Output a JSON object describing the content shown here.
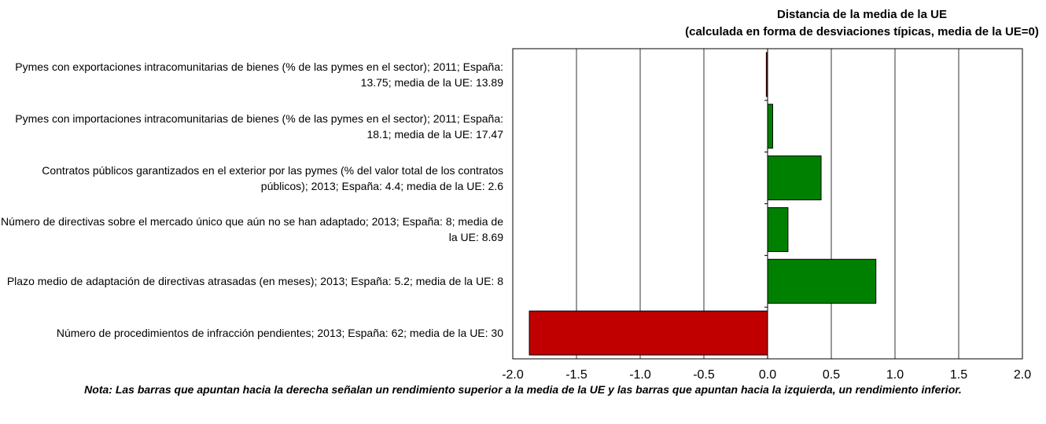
{
  "chart_data": {
    "type": "barh",
    "title": "Distancia de la media de la UE",
    "subtitle": "(calculada en forma de desviaciones típicas, media de la UE=0)",
    "categories": [
      "Pymes con exportaciones intracomunitarias de bienes (% de las pymes en el sector); 2011; España: 13.75; media de la UE: 13.89",
      "Pymes con importaciones intracomunitarias de bienes (% de las pymes en el sector); 2011; España: 18.1; media de la UE: 17.47",
      "Contratos públicos garantizados en el exterior por las pymes (% del valor total de los contratos públicos); 2013; España: 4.4; media de la UE: 2.6",
      "Número de directivas sobre el mercado único que aún no se han adaptado; 2013; España: 8; media de la UE: 8.69",
      "Plazo medio de adaptación de directivas atrasadas (en meses); 2013; España: 5.2; media de la UE: 8",
      "Número de procedimientos de infracción pendientes; 2013; España: 62; media de la UE: 30"
    ],
    "values": [
      -0.01,
      0.04,
      0.42,
      0.16,
      0.85,
      -1.87
    ],
    "colors": [
      "#c00000",
      "#008000",
      "#008000",
      "#008000",
      "#008000",
      "#c00000"
    ],
    "xlim": [
      -2,
      2
    ],
    "xticks": [
      {
        "value": -2,
        "label": "-2.0"
      },
      -1.5,
      {
        "value": -1,
        "label": "-1.0"
      },
      -0.5,
      {
        "value": 0,
        "label": "0.0"
      },
      0.5,
      {
        "value": 1,
        "label": "1.0"
      },
      1.5,
      {
        "value": 2,
        "label": "2.0"
      }
    ],
    "grid": true,
    "note": "Nota: Las barras que apuntan hacia la derecha señalan un rendimiento superior a la media de la UE y las barras que apuntan hacia la izquierda, un rendimiento inferior."
  }
}
